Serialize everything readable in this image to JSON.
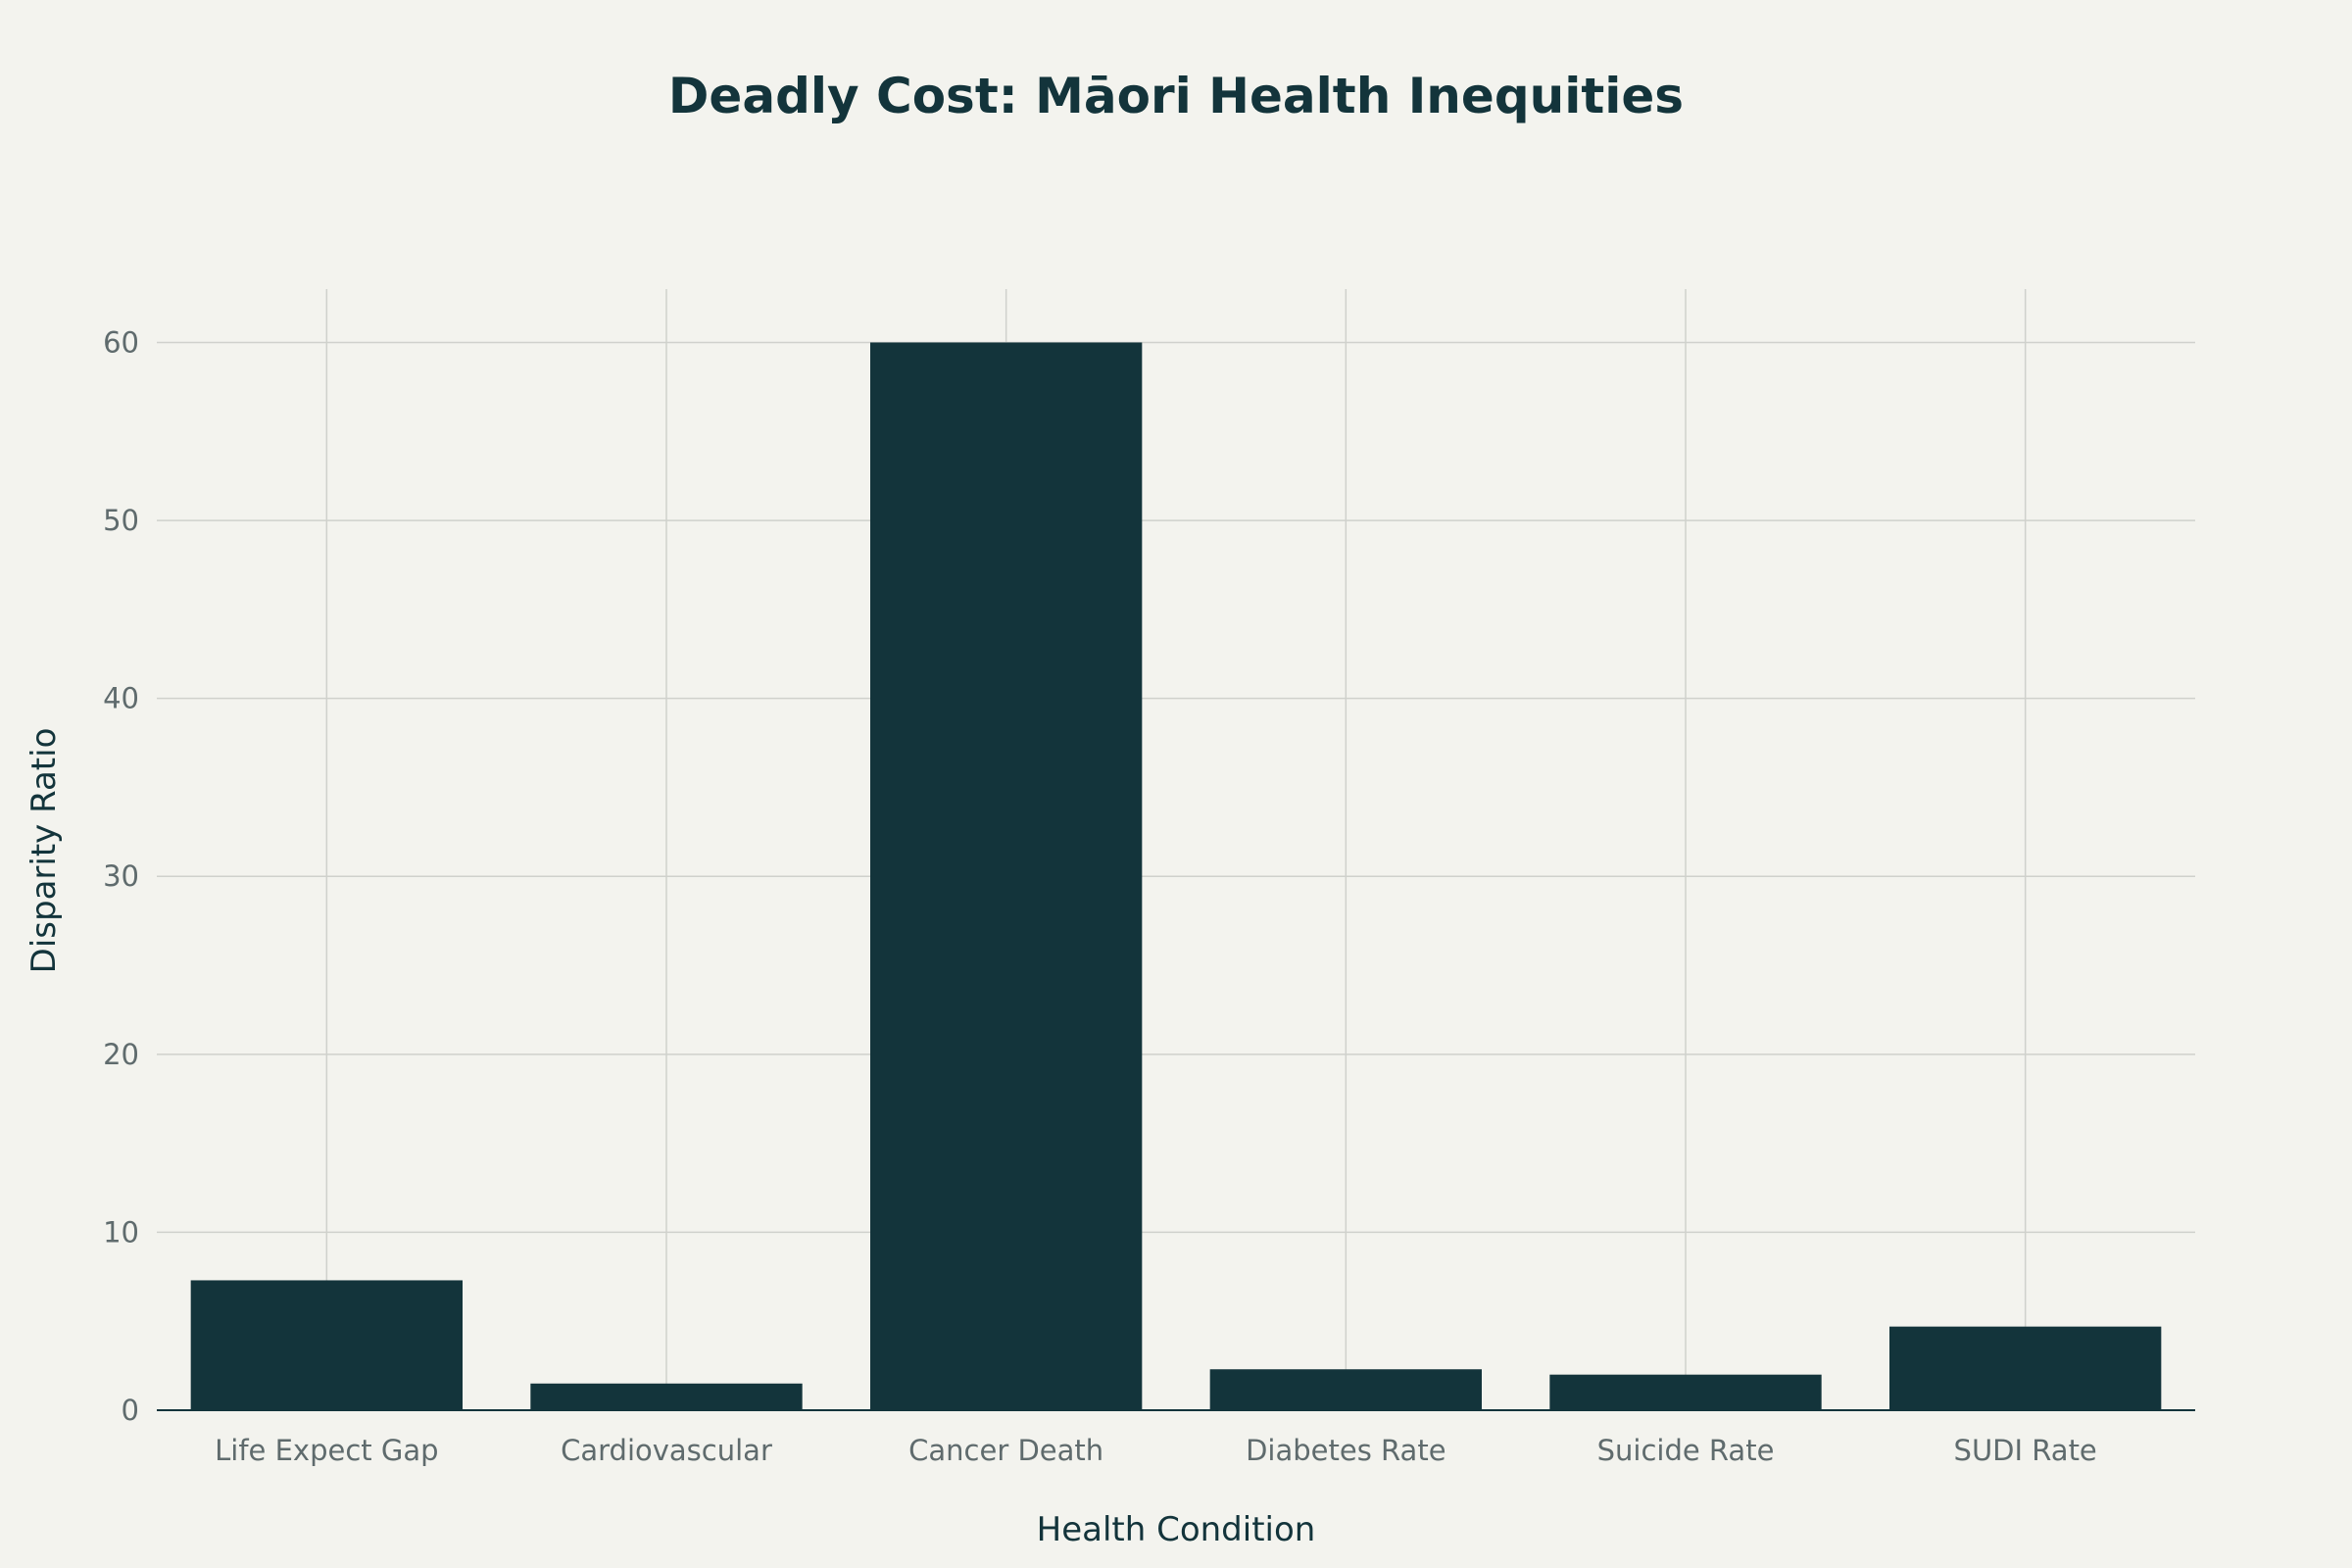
{
  "chart_data": {
    "type": "bar",
    "title": "Deadly Cost: Māori Health Inequities",
    "xlabel": "Health Condition",
    "ylabel": "Disparity Ratio",
    "categories": [
      "Life Expect Gap",
      "Cardiovascular",
      "Cancer Death",
      "Diabetes Rate",
      "Suicide Rate",
      "SUDI Rate"
    ],
    "values": [
      7.3,
      1.5,
      60,
      2.3,
      2.0,
      4.7
    ],
    "ylim": [
      0,
      63
    ],
    "yticks": [
      0,
      10,
      20,
      30,
      40,
      50,
      60
    ],
    "grid": true,
    "bar_color": "#13343b",
    "background_color": "#f3f3ee"
  }
}
